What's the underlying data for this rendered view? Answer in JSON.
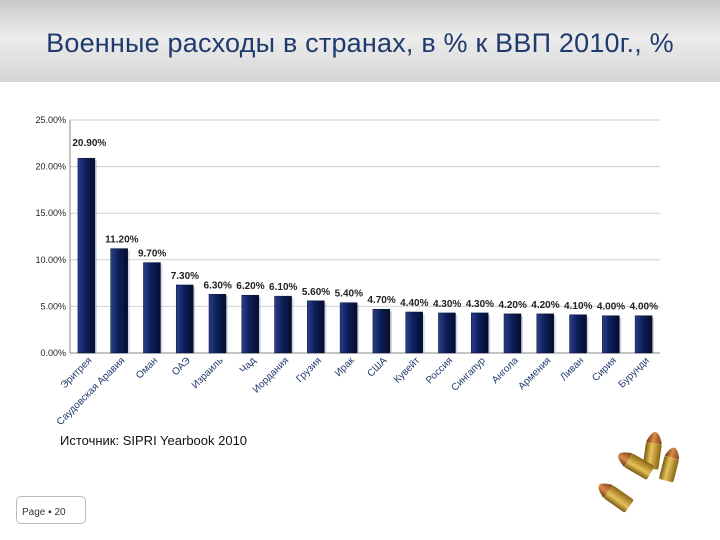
{
  "header": {
    "title": "Военные расходы в странах, в % к ВВП 2010г., %"
  },
  "chart_data": {
    "type": "bar",
    "title": "Военные расходы в странах, в % к ВВП 2010г., %",
    "categories": [
      "Эритрея",
      "Саудовская Аравия",
      "Оман",
      "ОАЭ",
      "Израиль",
      "Чад",
      "Иордания",
      "Грузия",
      "Ирак",
      "США",
      "Кувейт",
      "Россия",
      "Сингапур",
      "Ангола",
      "Армения",
      "Ливан",
      "Сирия",
      "Бурунди"
    ],
    "values": [
      20.9,
      11.2,
      9.7,
      7.3,
      6.3,
      6.2,
      6.1,
      5.6,
      5.4,
      4.7,
      4.4,
      4.3,
      4.3,
      4.2,
      4.2,
      4.1,
      4.0,
      4.0
    ],
    "value_labels": [
      "20.90%",
      "11.20%",
      "9.70%",
      "7.30%",
      "6.30%",
      "6.20%",
      "6.10%",
      "5.60%",
      "5.40%",
      "4.70%",
      "4.40%",
      "4.30%",
      "4.30%",
      "4.20%",
      "4.20%",
      "4.10%",
      "4.00%",
      "4.00%"
    ],
    "yticks": [
      "0.00%",
      "5.00%",
      "10.00%",
      "15.00%",
      "20.00%",
      "25.00%"
    ],
    "ylim": [
      0,
      25
    ],
    "xlabel": "",
    "ylabel": "",
    "bar_color": "#0d1f5c",
    "grid": true,
    "legend": "none"
  },
  "footer": {
    "source": "Источник: SIPRI Yearbook 2010",
    "page": "Page ▪ 20"
  },
  "decor": {
    "icon": "bullets-icon"
  }
}
